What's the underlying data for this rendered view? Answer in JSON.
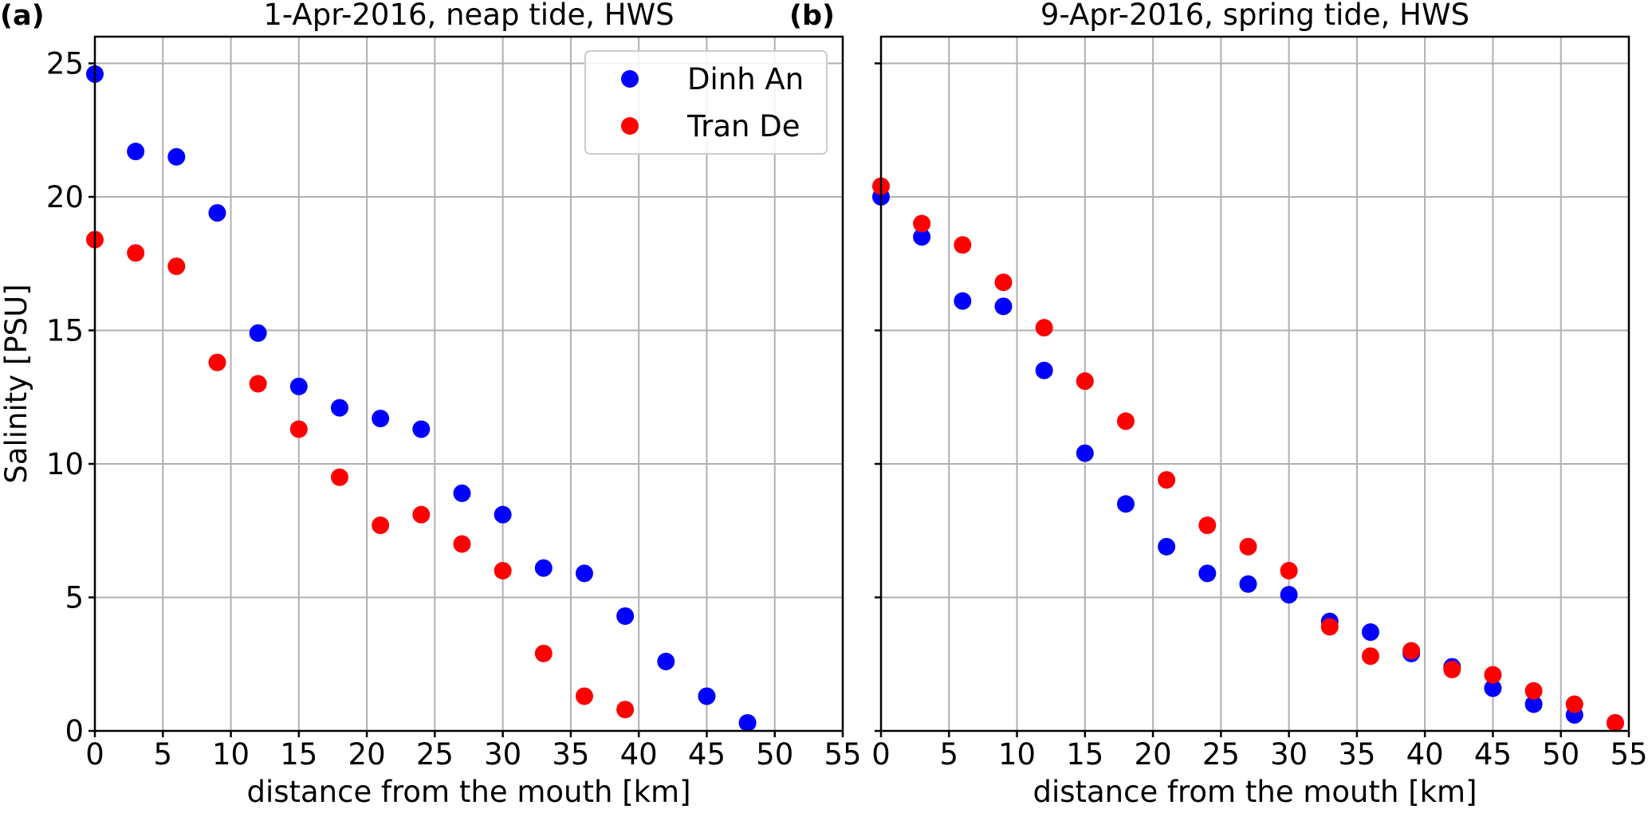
{
  "chart_data": [
    {
      "type": "scatter",
      "panel_label": "(a)",
      "title": "1-Apr-2016, neap tide, HWS",
      "xlabel": "distance from the mouth [km]",
      "ylabel": "Salinity [PSU]",
      "xlim": [
        0,
        55
      ],
      "ylim": [
        0,
        26
      ],
      "xticks": [
        0,
        5,
        10,
        15,
        20,
        25,
        30,
        35,
        40,
        45,
        50,
        55
      ],
      "yticks": [
        0,
        5,
        10,
        15,
        20,
        25
      ],
      "grid": true,
      "legend": {
        "placement": "top-right"
      },
      "series": [
        {
          "name": "Dinh An",
          "color": "#0000ff",
          "x": [
            0,
            3,
            6,
            9,
            12,
            15,
            18,
            21,
            24,
            27,
            30,
            33,
            36,
            39,
            42,
            45,
            48
          ],
          "y": [
            24.6,
            21.7,
            21.5,
            19.4,
            14.9,
            12.9,
            12.1,
            11.7,
            11.3,
            8.9,
            8.1,
            6.1,
            5.9,
            4.3,
            2.6,
            1.3,
            0.3
          ]
        },
        {
          "name": "Tran De",
          "color": "#ff0000",
          "x": [
            0,
            3,
            6,
            9,
            12,
            15,
            18,
            21,
            24,
            27,
            30,
            33,
            36,
            39
          ],
          "y": [
            18.4,
            17.9,
            17.4,
            13.8,
            13.0,
            11.3,
            9.5,
            7.7,
            8.1,
            7.0,
            6.0,
            2.9,
            1.3,
            0.8
          ]
        }
      ]
    },
    {
      "type": "scatter",
      "panel_label": "(b)",
      "title": "9-Apr-2016, spring tide, HWS",
      "xlabel": "distance from the mouth [km]",
      "ylabel": "",
      "xlim": [
        0,
        55
      ],
      "ylim": [
        0,
        26
      ],
      "xticks": [
        0,
        5,
        10,
        15,
        20,
        25,
        30,
        35,
        40,
        45,
        50,
        55
      ],
      "yticks": [
        0,
        5,
        10,
        15,
        20,
        25
      ],
      "show_ytick_labels": false,
      "grid": true,
      "series": [
        {
          "name": "Dinh An",
          "color": "#0000ff",
          "x": [
            0,
            3,
            6,
            9,
            12,
            15,
            18,
            21,
            24,
            27,
            30,
            33,
            36,
            39,
            42,
            45,
            48,
            51,
            54
          ],
          "y": [
            20.0,
            18.5,
            16.1,
            15.9,
            13.5,
            10.4,
            8.5,
            6.9,
            5.9,
            5.5,
            5.1,
            4.1,
            3.7,
            2.9,
            2.4,
            1.6,
            1.0,
            0.6,
            0.3
          ]
        },
        {
          "name": "Tran De",
          "color": "#ff0000",
          "x": [
            0,
            3,
            6,
            9,
            12,
            15,
            18,
            21,
            24,
            27,
            30,
            33,
            36,
            39,
            42,
            45,
            48,
            51,
            54
          ],
          "y": [
            20.4,
            19.0,
            18.2,
            16.8,
            15.1,
            13.1,
            11.6,
            9.4,
            7.7,
            6.9,
            6.0,
            3.9,
            2.8,
            3.0,
            2.3,
            2.1,
            1.5,
            1.0,
            0.3
          ]
        }
      ]
    }
  ]
}
